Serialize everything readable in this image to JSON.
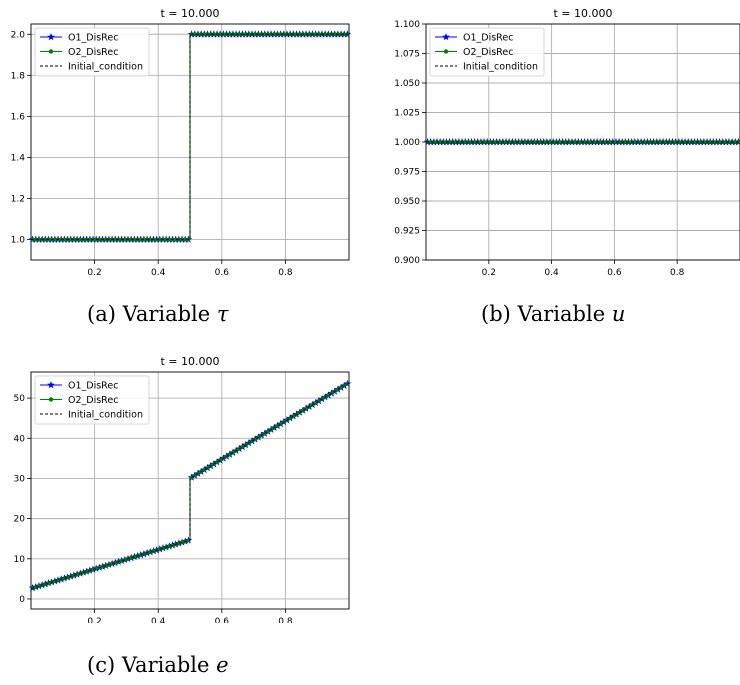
{
  "colors": {
    "o1": "#0000ff",
    "o2": "#008000",
    "init": "#000000",
    "grid": "#b0b0b0"
  },
  "captions": [
    {
      "prefix": "(a) Variable ",
      "symbol": "τ"
    },
    {
      "prefix": "(b) Variable ",
      "symbol": "u"
    },
    {
      "prefix": "(c) Variable ",
      "symbol": "e"
    }
  ],
  "chart_data": [
    {
      "type": "line",
      "title": "t = 10.000",
      "xlabel": "",
      "ylabel": "",
      "xlim": [
        0,
        1
      ],
      "ylim": [
        0.9,
        2.05
      ],
      "xticks": [
        0.2,
        0.4,
        0.6,
        0.8
      ],
      "xtick_labels": [
        "0.2",
        "0.4",
        "0.6",
        "0.8"
      ],
      "yticks": [
        1.0,
        1.2,
        1.4,
        1.6,
        1.8,
        2.0
      ],
      "ytick_labels": [
        "1.0",
        "1.2",
        "1.4",
        "1.6",
        "1.8",
        "2.0"
      ],
      "grid": true,
      "legend": "top-left",
      "series": [
        {
          "name": "O1_DisRec",
          "marker": "star",
          "style": "solid",
          "x": [
            0,
            0.5,
            0.5,
            1
          ],
          "y": [
            1.0,
            1.0,
            2.0,
            2.0
          ]
        },
        {
          "name": "O2_DisRec",
          "marker": "dot",
          "style": "solid",
          "x": [
            0,
            0.5,
            0.5,
            1
          ],
          "y": [
            1.0,
            1.0,
            2.0,
            2.0
          ]
        },
        {
          "name": "Initial_condition",
          "marker": "none",
          "style": "dashed",
          "x": [
            0,
            0.5,
            0.5,
            1
          ],
          "y": [
            1.0,
            1.0,
            2.0,
            2.0
          ]
        }
      ]
    },
    {
      "type": "line",
      "title": "t = 10.000",
      "xlabel": "",
      "ylabel": "",
      "xlim": [
        0,
        1
      ],
      "ylim": [
        0.9,
        1.1
      ],
      "xticks": [
        0.2,
        0.4,
        0.6,
        0.8
      ],
      "xtick_labels": [
        "0.2",
        "0.4",
        "0.6",
        "0.8"
      ],
      "yticks": [
        0.9,
        0.925,
        0.95,
        0.975,
        1.0,
        1.025,
        1.05,
        1.075,
        1.1
      ],
      "ytick_labels": [
        "0.900",
        "0.925",
        "0.950",
        "0.975",
        "1.000",
        "1.025",
        "1.050",
        "1.075",
        "1.100"
      ],
      "grid": true,
      "legend": "top-left",
      "series": [
        {
          "name": "O1_DisRec",
          "marker": "star",
          "style": "solid",
          "x": [
            0,
            1
          ],
          "y": [
            1.0,
            1.0
          ]
        },
        {
          "name": "O2_DisRec",
          "marker": "dot",
          "style": "solid",
          "x": [
            0,
            1
          ],
          "y": [
            1.0,
            1.0
          ]
        },
        {
          "name": "Initial_condition",
          "marker": "none",
          "style": "dashed",
          "x": [
            0,
            1
          ],
          "y": [
            1.0,
            1.0
          ]
        }
      ]
    },
    {
      "type": "line",
      "title": "t = 10.000",
      "xlabel": "",
      "ylabel": "",
      "xlim": [
        0,
        1
      ],
      "ylim": [
        -2.5,
        56.5
      ],
      "xticks": [
        0.2,
        0.4,
        0.6,
        0.8
      ],
      "xtick_labels": [
        "0.2",
        "0.4",
        "0.6",
        "0.8"
      ],
      "yticks": [
        0,
        10,
        20,
        30,
        40,
        50
      ],
      "ytick_labels": [
        "0",
        "10",
        "20",
        "30",
        "40",
        "50"
      ],
      "grid": true,
      "legend": "top-left",
      "series": [
        {
          "name": "O1_DisRec",
          "marker": "star",
          "style": "solid",
          "x": [
            0,
            0.5,
            0.5,
            1
          ],
          "y": [
            2.6,
            14.7,
            30.0,
            53.8
          ]
        },
        {
          "name": "O2_DisRec",
          "marker": "dot",
          "style": "solid",
          "x": [
            0,
            0.5,
            0.5,
            1
          ],
          "y": [
            2.6,
            14.7,
            30.0,
            53.8
          ]
        },
        {
          "name": "Initial_condition",
          "marker": "none",
          "style": "dashed",
          "x": [
            0,
            0.5,
            0.5,
            1
          ],
          "y": [
            2.6,
            14.7,
            30.0,
            53.8
          ]
        }
      ]
    }
  ]
}
